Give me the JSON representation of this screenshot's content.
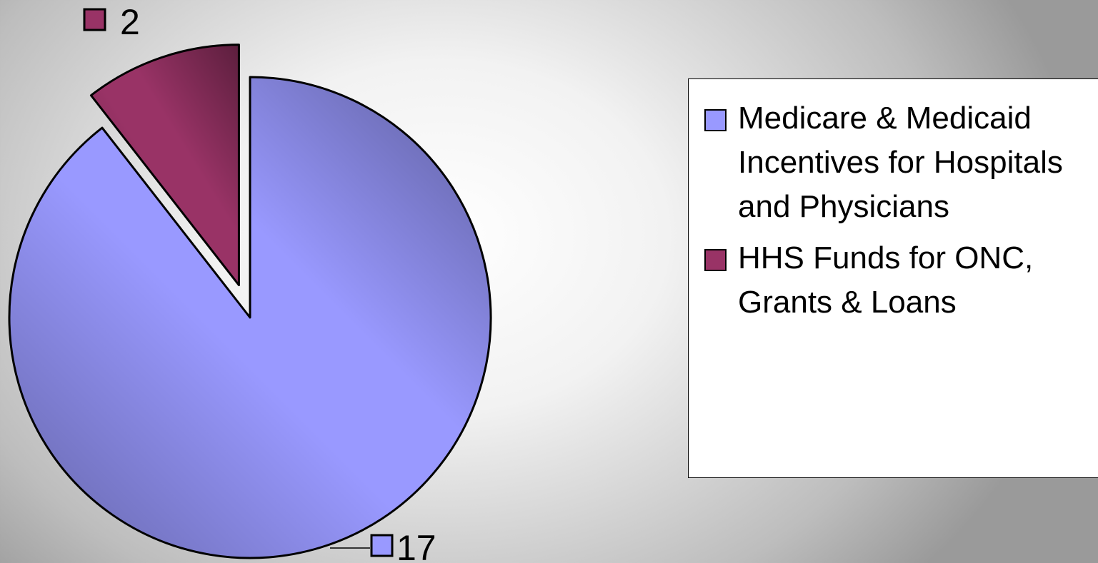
{
  "chart_data": {
    "type": "pie",
    "categories": [
      "Medicare & Medicaid Incentives for Hospitals and Physicians",
      "HHS Funds for ONC, Grants & Loans"
    ],
    "values": [
      17,
      2
    ],
    "colors": [
      "#9999ff",
      "#993366"
    ],
    "legend": "right"
  }
}
